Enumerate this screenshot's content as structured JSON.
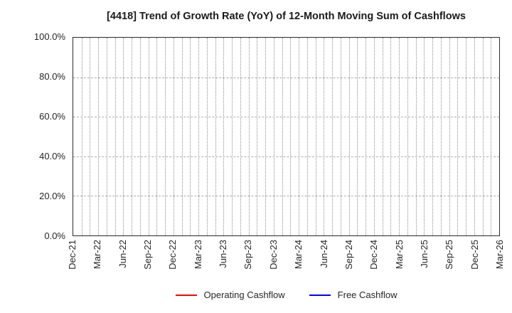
{
  "title": "[4418]  Trend of Growth Rate (YoY) of 12-Month Moving Sum of Cashflows",
  "chart_data": {
    "type": "line",
    "title": "[4418]  Trend of Growth Rate (YoY) of 12-Month Moving Sum of Cashflows",
    "plot_empty": true,
    "x_axis": {
      "tick_labels": [
        "Dec-21",
        "Mar-22",
        "Jun-22",
        "Sep-22",
        "Dec-22",
        "Mar-23",
        "Jun-23",
        "Sep-23",
        "Dec-23",
        "Mar-24",
        "Jun-24",
        "Sep-24",
        "Dec-24",
        "Mar-25",
        "Jun-25",
        "Sep-25",
        "Dec-25",
        "Mar-26"
      ],
      "months_per_tick": 3,
      "total_month_intervals": 51,
      "grid_style": "dotted vertical line every month"
    },
    "y_axis": {
      "tick_labels": [
        "100.0%",
        "80.0%",
        "60.0%",
        "40.0%",
        "20.0%",
        "0.0%"
      ],
      "min": 0.0,
      "max": 100.0,
      "step": 20.0,
      "unit": "%",
      "grid_style": "dashed horizontal line every 20%"
    },
    "series": [
      {
        "name": "Operating Cashflow",
        "color": "#ff0000",
        "values": []
      },
      {
        "name": "Free Cashflow",
        "color": "#0000ff",
        "values": []
      }
    ],
    "legend_position": "bottom-center",
    "grid": true
  },
  "legend": {
    "items": [
      {
        "label": "Operating Cashflow",
        "color": "#ff0000"
      },
      {
        "label": "Free Cashflow",
        "color": "#0000ff"
      }
    ]
  },
  "colors": {
    "background": "#ffffff",
    "frame": "#2b2b2b",
    "grid_vertical": "#8f8f8f",
    "grid_horizontal": "#adadad",
    "text": "#262626",
    "operating_cashflow": "#ff0000",
    "free_cashflow": "#0000ff"
  }
}
